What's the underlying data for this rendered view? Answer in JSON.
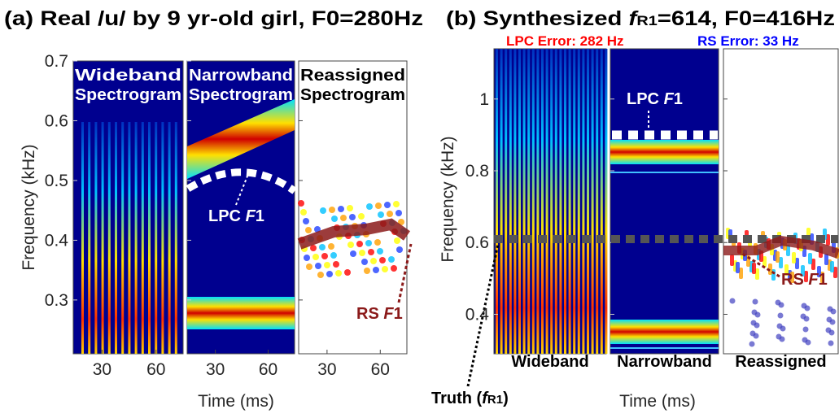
{
  "panel_a": {
    "title": "(a) Real /u/ by 9 yr-old girl, F0=280Hz",
    "y_label": "Frequency (kHz)",
    "x_label": "Time (ms)",
    "ylim": [
      0.21,
      0.7
    ],
    "yticks": [
      0.3,
      0.4,
      0.5,
      0.6,
      0.7
    ],
    "xlim": [
      14,
      75
    ],
    "xticks": [
      30,
      60
    ],
    "subplots": [
      {
        "title": [
          "Wideband",
          "Spectrogram"
        ]
      },
      {
        "title": [
          "Narrowband",
          "Spectrogram"
        ]
      },
      {
        "title": [
          "Reassigned",
          "Spectrogram"
        ]
      }
    ],
    "lpc_label": [
      "LPC ",
      "F",
      "1"
    ],
    "rs_label": [
      "RS ",
      "F",
      "1"
    ]
  },
  "panel_b": {
    "title": [
      "(b) Synthesized ",
      "f",
      "R1",
      "=614, F0=416Hz"
    ],
    "lpc_error": "LPC Error: 282 Hz",
    "rs_error": "RS Error: 33 Hz",
    "y_label": "Frequency (kHz)",
    "x_label": "Time (ms)",
    "ylim": [
      0.29,
      1.14
    ],
    "yticks": [
      0.4,
      0.6,
      0.8,
      1
    ],
    "subplots": [
      "Wideband",
      "Narrowband",
      "Reassigned"
    ],
    "lpc_label": [
      "LPC ",
      "F",
      "1"
    ],
    "rs_label": [
      "RS ",
      "F",
      "1"
    ],
    "truth_label": [
      "Truth (",
      "f",
      "R1",
      ")"
    ]
  }
}
